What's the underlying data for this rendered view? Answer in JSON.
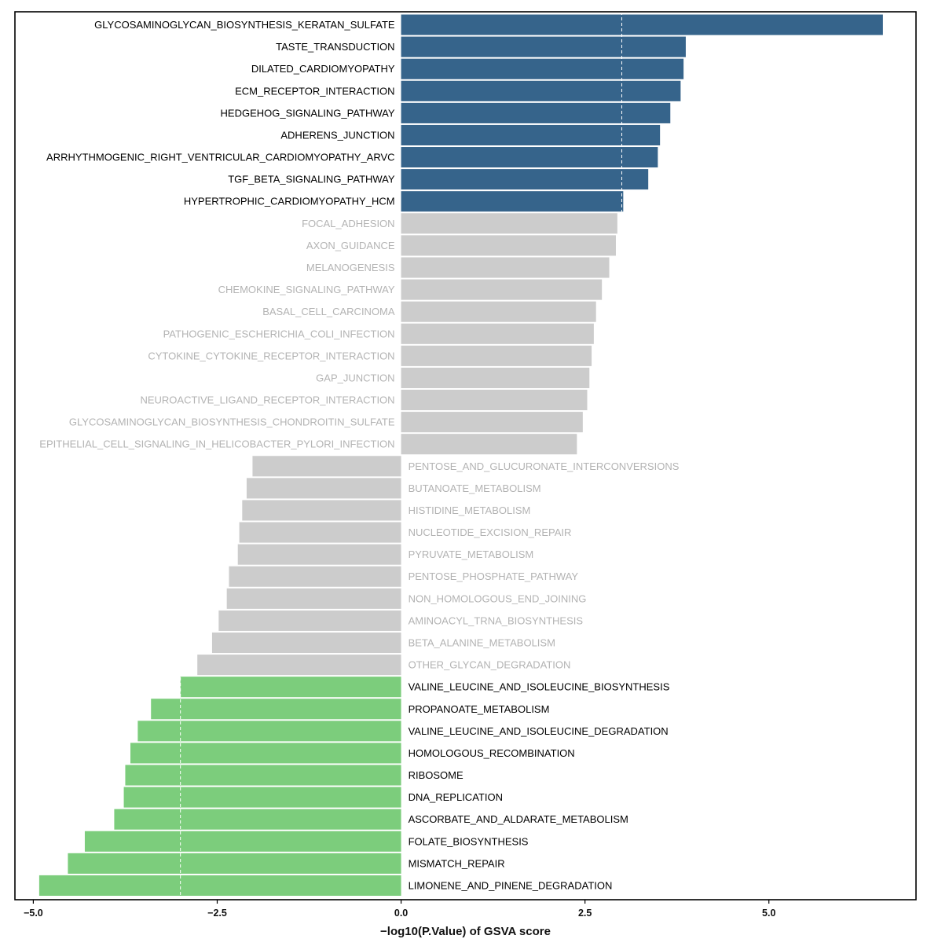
{
  "chart_data": {
    "type": "bar",
    "orientation": "horizontal",
    "title": "",
    "xlabel": "−log10(P.Value) of GSVA score",
    "ylabel": "",
    "xlim": [
      -5.25,
      7.0
    ],
    "xticks": [
      -5.0,
      -2.5,
      0.0,
      2.5,
      5.0
    ],
    "xtick_labels": [
      "−5.0",
      "−2.5",
      "0.0",
      "2.5",
      "5.0"
    ],
    "threshold_lines": [
      -3,
      3
    ],
    "grid": false,
    "legend": "none",
    "colors": {
      "up": "#36648b",
      "down": "#7ccd7c",
      "ns": "#cccccc",
      "label_sig": "#000000",
      "label_ns": "#b3b3b3"
    },
    "categories": [
      "GLYCOSAMINOGLYCAN_BIOSYNTHESIS_KERATAN_SULFATE",
      "TASTE_TRANSDUCTION",
      "DILATED_CARDIOMYOPATHY",
      "ECM_RECEPTOR_INTERACTION",
      "HEDGEHOG_SIGNALING_PATHWAY",
      "ADHERENS_JUNCTION",
      "ARRHYTHMOGENIC_RIGHT_VENTRICULAR_CARDIOMYOPATHY_ARVC",
      "TGF_BETA_SIGNALING_PATHWAY",
      "HYPERTROPHIC_CARDIOMYOPATHY_HCM",
      "FOCAL_ADHESION",
      "AXON_GUIDANCE",
      "MELANOGENESIS",
      "CHEMOKINE_SIGNALING_PATHWAY",
      "BASAL_CELL_CARCINOMA",
      "PATHOGENIC_ESCHERICHIA_COLI_INFECTION",
      "CYTOKINE_CYTOKINE_RECEPTOR_INTERACTION",
      "GAP_JUNCTION",
      "NEUROACTIVE_LIGAND_RECEPTOR_INTERACTION",
      "GLYCOSAMINOGLYCAN_BIOSYNTHESIS_CHONDROITIN_SULFATE",
      "EPITHELIAL_CELL_SIGNALING_IN_HELICOBACTER_PYLORI_INFECTION",
      "PENTOSE_AND_GLUCURONATE_INTERCONVERSIONS",
      "BUTANOATE_METABOLISM",
      "HISTIDINE_METABOLISM",
      "NUCLEOTIDE_EXCISION_REPAIR",
      "PYRUVATE_METABOLISM",
      "PENTOSE_PHOSPHATE_PATHWAY",
      "NON_HOMOLOGOUS_END_JOINING",
      "AMINOACYL_TRNA_BIOSYNTHESIS",
      "BETA_ALANINE_METABOLISM",
      "OTHER_GLYCAN_DEGRADATION",
      "VALINE_LEUCINE_AND_ISOLEUCINE_BIOSYNTHESIS",
      "PROPANOATE_METABOLISM",
      "VALINE_LEUCINE_AND_ISOLEUCINE_DEGRADATION",
      "HOMOLOGOUS_RECOMBINATION",
      "RIBOSOME",
      "DNA_REPLICATION",
      "ASCORBATE_AND_ALDARATE_METABOLISM",
      "FOLATE_BIOSYNTHESIS",
      "MISMATCH_REPAIR",
      "LIMONENE_AND_PINENE_DEGRADATION"
    ],
    "values": [
      6.55,
      3.87,
      3.84,
      3.8,
      3.66,
      3.52,
      3.49,
      3.36,
      3.02,
      2.94,
      2.92,
      2.83,
      2.73,
      2.65,
      2.62,
      2.59,
      2.56,
      2.53,
      2.47,
      2.39,
      -2.02,
      -2.1,
      -2.16,
      -2.2,
      -2.22,
      -2.34,
      -2.37,
      -2.48,
      -2.57,
      -2.77,
      -3.0,
      -3.4,
      -3.58,
      -3.68,
      -3.75,
      -3.77,
      -3.9,
      -4.3,
      -4.53,
      -4.92
    ]
  }
}
